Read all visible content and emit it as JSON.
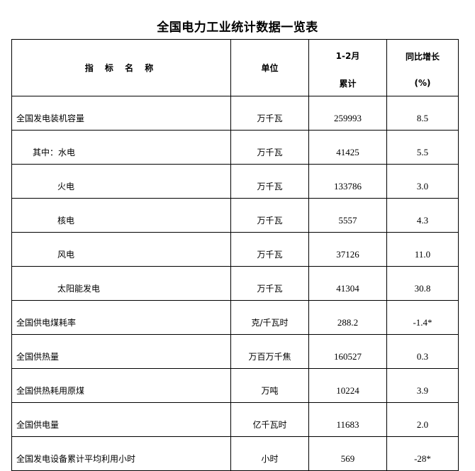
{
  "title": "全国电力工业统计数据一览表",
  "header": {
    "name": "指 标 名 称",
    "unit": "单位",
    "period_line1": "1-2月",
    "period_line2": "累计",
    "growth_line1": "同比增长",
    "growth_line2": "(%)"
  },
  "rows": [
    {
      "name": "全国发电装机容量",
      "unit": "万千瓦",
      "value": "259993",
      "growth": "8.5",
      "indent": 0
    },
    {
      "name": "其中：水电",
      "unit": "万千瓦",
      "value": "41425",
      "growth": "5.5",
      "indent": 1
    },
    {
      "name": "火电",
      "unit": "万千瓦",
      "value": "133786",
      "growth": "3.0",
      "indent": 2
    },
    {
      "name": "核电",
      "unit": "万千瓦",
      "value": "5557",
      "growth": "4.3",
      "indent": 2
    },
    {
      "name": "风电",
      "unit": "万千瓦",
      "value": "37126",
      "growth": "11.0",
      "indent": 2
    },
    {
      "name": "太阳能发电",
      "unit": "万千瓦",
      "value": "41304",
      "growth": "30.8",
      "indent": 2
    },
    {
      "name": "全国供电煤耗率",
      "unit": "克/千瓦时",
      "value": "288.2",
      "growth": "-1.4*",
      "indent": 0
    },
    {
      "name": "全国供热量",
      "unit": "万百万千焦",
      "value": "160527",
      "growth": "0.3",
      "indent": 0
    },
    {
      "name": "全国供热耗用原煤",
      "unit": "万吨",
      "value": "10224",
      "growth": "3.9",
      "indent": 0
    },
    {
      "name": "全国供电量",
      "unit": "亿千瓦时",
      "value": "11683",
      "growth": "2.0",
      "indent": 0
    },
    {
      "name": "全国发电设备累计平均利用小时",
      "unit": "小时",
      "value": "569",
      "growth": "-28*",
      "indent": 0
    }
  ]
}
